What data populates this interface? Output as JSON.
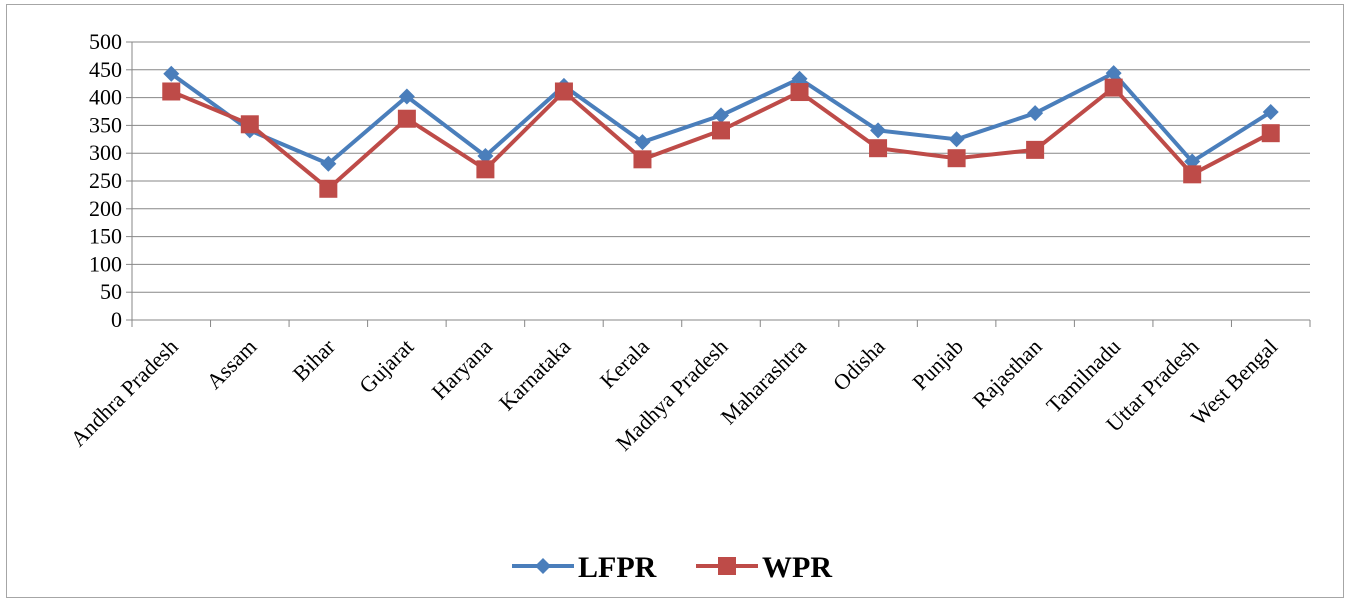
{
  "chart_data": {
    "type": "line",
    "categories": [
      "Andhra Pradesh",
      "Assam",
      "Bihar",
      "Gujarat",
      "Haryana",
      "Karnataka",
      "Kerala",
      "Madhya Pradesh",
      "Maharashtra",
      "Odisha",
      "Punjab",
      "Rajasthan",
      "Tamilnadu",
      "Uttar Pradesh",
      "West Bengal"
    ],
    "series": [
      {
        "name": "LFPR",
        "color": "#4a7ebb",
        "marker": "diamond",
        "values": [
          443,
          341,
          281,
          402,
          295,
          421,
          320,
          368,
          434,
          341,
          325,
          372,
          444,
          285,
          374
        ]
      },
      {
        "name": "WPR",
        "color": "#be4b48",
        "marker": "square",
        "values": [
          411,
          352,
          236,
          362,
          271,
          411,
          289,
          341,
          410,
          309,
          291,
          306,
          418,
          262,
          336
        ]
      }
    ],
    "yticks": [
      "0",
      "50",
      "100",
      "150",
      "200",
      "250",
      "300",
      "350",
      "400",
      "450",
      "500"
    ],
    "ylim": [
      0,
      500
    ],
    "grid": true,
    "legend": "bottom"
  }
}
